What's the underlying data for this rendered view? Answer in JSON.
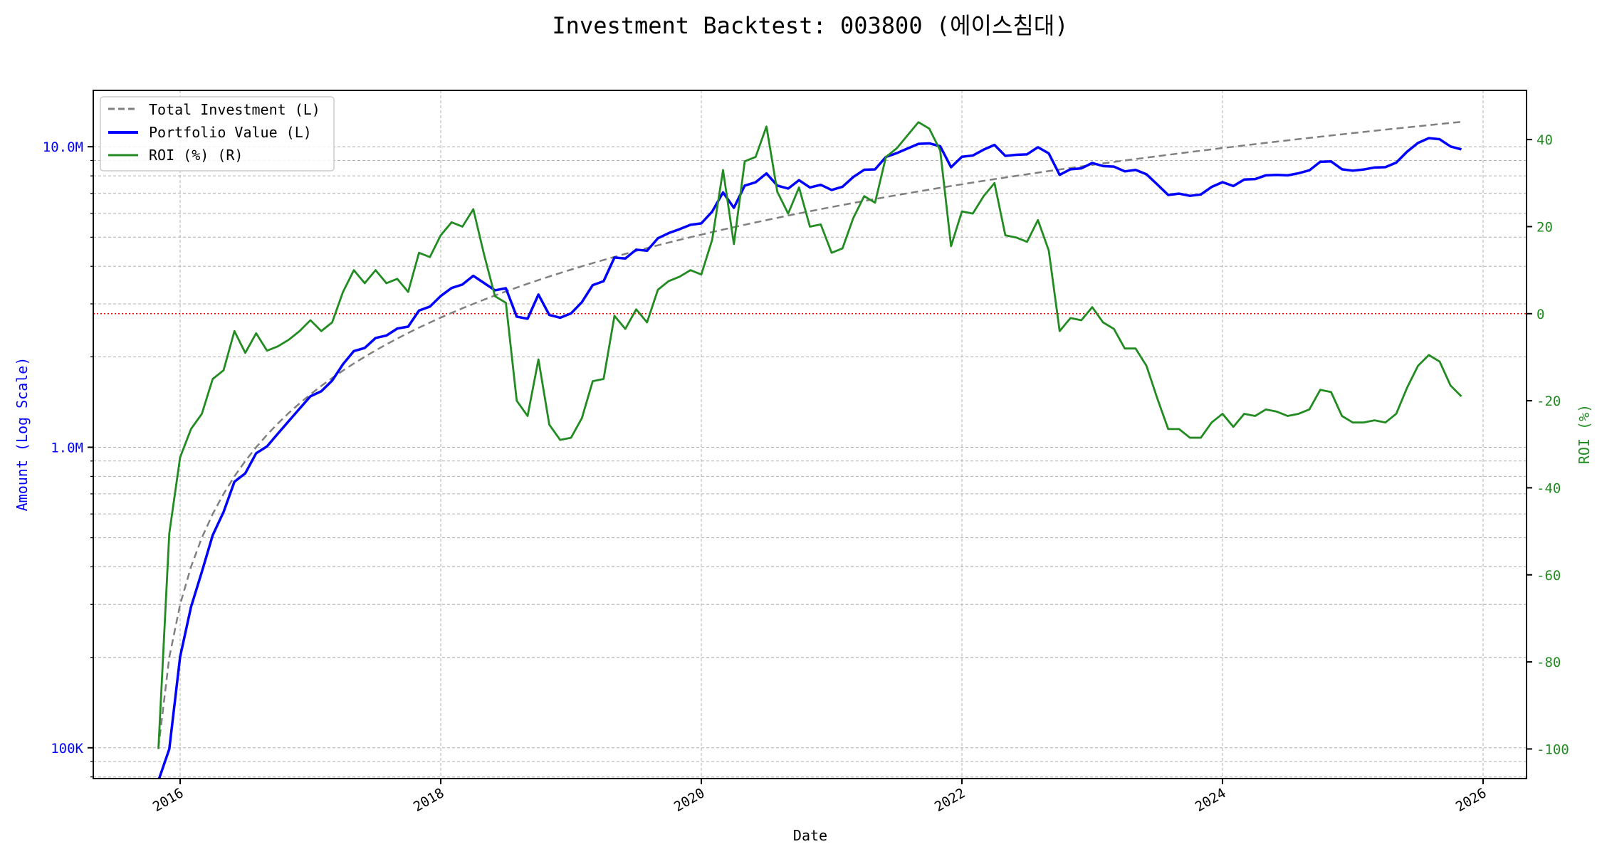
{
  "chart_data": {
    "type": "line",
    "title": "Investment Backtest: 003800 (에이스침대)",
    "xlabel": "Date",
    "ylabel_left": "Amount (Log Scale)",
    "ylabel_right": "ROI (%)",
    "y_left_scale": "log",
    "y_left_range": [
      79000,
      15400000
    ],
    "y_left_ticks": [
      {
        "value": 100000,
        "label": "100K"
      },
      {
        "value": 1000000,
        "label": "1.0M"
      },
      {
        "value": 10000000,
        "label": "10.0M"
      }
    ],
    "y_right_range": [
      -106.8,
      51.3
    ],
    "y_right_ticks": [
      -100,
      -80,
      -60,
      -40,
      -20,
      0,
      20,
      40
    ],
    "x_range": [
      "2015-05",
      "2026-05"
    ],
    "x_ticks": [
      "2016",
      "2018",
      "2020",
      "2022",
      "2024",
      "2026"
    ],
    "grid": true,
    "legend_position": "top-left",
    "reference_line": {
      "axis": "right",
      "value": 0,
      "color": "#ff0000",
      "style": "dotted"
    },
    "colors": {
      "total_investment": "#808080",
      "portfolio_value": "#0000ff",
      "roi": "#228b22",
      "left_axis": "#0000ff",
      "right_axis": "#228b22"
    },
    "dates": [
      "2015-11",
      "2015-12",
      "2016-01",
      "2016-02",
      "2016-03",
      "2016-04",
      "2016-05",
      "2016-06",
      "2016-07",
      "2016-08",
      "2016-09",
      "2016-10",
      "2016-11",
      "2016-12",
      "2017-01",
      "2017-02",
      "2017-03",
      "2017-04",
      "2017-05",
      "2017-06",
      "2017-07",
      "2017-08",
      "2017-09",
      "2017-10",
      "2017-11",
      "2017-12",
      "2018-01",
      "2018-02",
      "2018-03",
      "2018-04",
      "2018-05",
      "2018-06",
      "2018-07",
      "2018-08",
      "2018-09",
      "2018-10",
      "2018-11",
      "2018-12",
      "2019-01",
      "2019-02",
      "2019-03",
      "2019-04",
      "2019-05",
      "2019-06",
      "2019-07",
      "2019-08",
      "2019-09",
      "2019-10",
      "2019-11",
      "2019-12",
      "2020-01",
      "2020-02",
      "2020-03",
      "2020-04",
      "2020-05",
      "2020-06",
      "2020-07",
      "2020-08",
      "2020-09",
      "2020-10",
      "2020-11",
      "2020-12",
      "2021-01",
      "2021-02",
      "2021-03",
      "2021-04",
      "2021-05",
      "2021-06",
      "2021-07",
      "2021-08",
      "2021-09",
      "2021-10",
      "2021-11",
      "2021-12",
      "2022-01",
      "2022-02",
      "2022-03",
      "2022-04",
      "2022-05",
      "2022-06",
      "2022-07",
      "2022-08",
      "2022-09",
      "2022-10",
      "2022-11",
      "2022-12",
      "2023-01",
      "2023-02",
      "2023-03",
      "2023-04",
      "2023-05",
      "2023-06",
      "2023-07",
      "2023-08",
      "2023-09",
      "2023-10",
      "2023-11",
      "2023-12",
      "2024-01",
      "2024-02",
      "2024-03",
      "2024-04",
      "2024-05",
      "2024-06",
      "2024-07",
      "2024-08",
      "2024-09",
      "2024-10",
      "2024-11",
      "2024-12",
      "2025-01",
      "2025-02",
      "2025-03",
      "2025-04",
      "2025-05",
      "2025-06",
      "2025-07",
      "2025-08",
      "2025-09",
      "2025-10",
      "2025-11"
    ],
    "series": [
      {
        "name": "Total Investment (L)",
        "axis": "left",
        "style": "dashed",
        "values": [
          100000,
          200000,
          300000,
          400000,
          500000,
          600000,
          700000,
          800000,
          900000,
          1000000,
          1100000,
          1200000,
          1300000,
          1400000,
          1500000,
          1600000,
          1700000,
          1800000,
          1900000,
          2000000,
          2100000,
          2200000,
          2300000,
          2400000,
          2500000,
          2600000,
          2700000,
          2800000,
          2900000,
          3000000,
          3100000,
          3200000,
          3300000,
          3400000,
          3500000,
          3600000,
          3700000,
          3800000,
          3900000,
          4000000,
          4100000,
          4200000,
          4300000,
          4400000,
          4500000,
          4600000,
          4700000,
          4800000,
          4900000,
          5000000,
          5100000,
          5200000,
          5300000,
          5400000,
          5500000,
          5600000,
          5700000,
          5800000,
          5900000,
          6000000,
          6100000,
          6200000,
          6300000,
          6400000,
          6500000,
          6600000,
          6700000,
          6800000,
          6900000,
          7000000,
          7100000,
          7200000,
          7300000,
          7400000,
          7500000,
          7600000,
          7700000,
          7800000,
          7900000,
          8000000,
          8100000,
          8200000,
          8300000,
          8400000,
          8500000,
          8600000,
          8700000,
          8800000,
          8900000,
          9000000,
          9100000,
          9200000,
          9300000,
          9400000,
          9500000,
          9600000,
          9700000,
          9800000,
          9900000,
          10000000,
          10100000,
          10200000,
          10300000,
          10400000,
          10500000,
          10600000,
          10700000,
          10800000,
          10900000,
          11000000,
          11100000,
          11200000,
          11300000,
          11400000,
          11500000,
          11600000,
          11700000,
          11800000,
          11900000,
          12000000,
          12100000
        ]
      },
      {
        "name": "Portfolio Value (L)",
        "axis": "left",
        "style": "solid",
        "values": [
          0,
          99000,
          201000,
          294000,
          385000,
          510000,
          609000,
          768000,
          819000,
          955000,
          1006500,
          1110000,
          1222000,
          1344000,
          1477500,
          1536000,
          1666000,
          1890000,
          2090000,
          2140000,
          2310000,
          2354000,
          2484000,
          2520000,
          2850000,
          2938000,
          3186000,
          3388000,
          3480000,
          3720000,
          3518500,
          3328000,
          3382500,
          2720000,
          2677500,
          3222000,
          2756500,
          2698000,
          2788500,
          3040000,
          3464500,
          3570000,
          4278500,
          4246000,
          4545000,
          4508000,
          4958500,
          5160000,
          5316500,
          5500000,
          5559000,
          6084000,
          7049000,
          6264000,
          7425000,
          7616000,
          8151000,
          7424000,
          7257000,
          7740000,
          7320000,
          7471000,
          7182000,
          7360000,
          7930000,
          8382000,
          8408500,
          9248000,
          9522000,
          9870000,
          10224000,
          10260000,
          10037500,
          8547000,
          9262500,
          9348000,
          9779000,
          10140000,
          9322000,
          9400000,
          9436500,
          9963000,
          9503500,
          8064000,
          8415000,
          8471000,
          8830500,
          8624000,
          8588500,
          8280000,
          8372000,
          8096000,
          7486500,
          6909000,
          6982500,
          6864000,
          6935500,
          7350000,
          7623000,
          7400000,
          7777000,
          7803000,
          8034000,
          8060000,
          8032500,
          8162000,
          8346000,
          8910000,
          8938000,
          8415000,
          8325000,
          8400000,
          8531500,
          8550000,
          8855000,
          9628000,
          10296000,
          10679000,
          10591000,
          10020000,
          9801000
        ]
      },
      {
        "name": "ROI (%) (R)",
        "axis": "right",
        "style": "solid",
        "values": [
          -100,
          -50.5,
          -33,
          -26.5,
          -23,
          -15,
          -13,
          -4,
          -9,
          -4.5,
          -8.5,
          -7.5,
          -6,
          -4,
          -1.5,
          -4,
          -2,
          5,
          10,
          7,
          10,
          7,
          8,
          5,
          14,
          13,
          18,
          21,
          20,
          24,
          13.5,
          4,
          2.5,
          -20,
          -23.5,
          -10.5,
          -25.5,
          -29,
          -28.5,
          -24,
          -15.5,
          -15,
          -0.5,
          -3.5,
          1,
          -2,
          5.5,
          7.5,
          8.5,
          10,
          9,
          17,
          33,
          16,
          35,
          36,
          43,
          28,
          23,
          29,
          20,
          20.5,
          14,
          15,
          22,
          27,
          25.5,
          36,
          38,
          41,
          44,
          42.5,
          37.5,
          15.5,
          23.5,
          23,
          27,
          30,
          18,
          17.5,
          16.5,
          21.5,
          14.5,
          -4,
          -1,
          -1.5,
          1.5,
          -2,
          -3.5,
          -8,
          -8,
          -12,
          -19.5,
          -26.5,
          -26.5,
          -28.5,
          -28.5,
          -25,
          -23,
          -26,
          -23,
          -23.5,
          -22,
          -22.5,
          -23.5,
          -23,
          -22,
          -17.5,
          -18,
          -23.5,
          -25,
          -25,
          -24.5,
          -25,
          -23,
          -17,
          -12,
          -9.5,
          -11,
          -16.5,
          -19
        ]
      }
    ]
  }
}
